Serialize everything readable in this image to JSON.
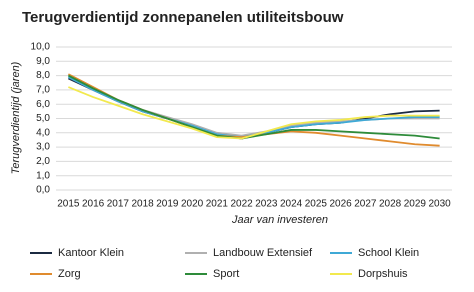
{
  "chart_data": {
    "type": "line",
    "title": "Terugverdientijd zonnepanelen utiliteitsbouw",
    "x_label": "Jaar van investeren",
    "y_label": "Terugverdientijd (jaren)",
    "categories": [
      "2015",
      "2016",
      "2017",
      "2018",
      "2019",
      "2020",
      "2021",
      "2022",
      "2023",
      "2024",
      "2025",
      "2026",
      "2027",
      "2028",
      "2029",
      "2030"
    ],
    "ylim": [
      0,
      10
    ],
    "yticks": [
      {
        "value": 0,
        "label": "0,0"
      },
      {
        "value": 1,
        "label": "1,0"
      },
      {
        "value": 2,
        "label": "2,0"
      },
      {
        "value": 3,
        "label": "3,0"
      },
      {
        "value": 4,
        "label": "4,0"
      },
      {
        "value": 5,
        "label": "5,0"
      },
      {
        "value": 6,
        "label": "6,0"
      },
      {
        "value": 7,
        "label": "7,0"
      },
      {
        "value": 8,
        "label": "8,0"
      },
      {
        "value": 9,
        "label": "9,0"
      },
      {
        "value": 10,
        "label": "10,0"
      }
    ],
    "grid": true,
    "series": [
      {
        "name": "Kantoor Klein",
        "color": "#1b2a41",
        "values": [
          7.8,
          7.0,
          6.2,
          5.5,
          5.0,
          4.5,
          3.9,
          3.6,
          4.0,
          4.4,
          4.6,
          4.7,
          5.0,
          5.3,
          5.5,
          5.55
        ]
      },
      {
        "name": "Landbouw Extensief",
        "color": "#b0b0b0",
        "values": [
          8.0,
          7.1,
          6.3,
          5.6,
          5.1,
          4.6,
          4.0,
          3.8,
          4.1,
          4.5,
          4.7,
          4.8,
          4.9,
          5.0,
          5.0,
          5.0
        ]
      },
      {
        "name": "School Klein",
        "color": "#3fa9d6",
        "values": [
          7.9,
          7.0,
          6.2,
          5.5,
          5.0,
          4.5,
          3.9,
          3.7,
          4.0,
          4.4,
          4.6,
          4.7,
          4.9,
          5.0,
          5.1,
          5.1
        ]
      },
      {
        "name": "Zorg",
        "color": "#e08b2e",
        "values": [
          8.1,
          7.2,
          6.3,
          5.6,
          5.0,
          4.4,
          3.8,
          3.7,
          3.9,
          4.1,
          4.0,
          3.8,
          3.6,
          3.4,
          3.2,
          3.1
        ]
      },
      {
        "name": "Sport",
        "color": "#2e8b3a",
        "values": [
          8.0,
          7.1,
          6.3,
          5.6,
          5.0,
          4.4,
          3.8,
          3.6,
          3.9,
          4.2,
          4.2,
          4.1,
          4.0,
          3.9,
          3.8,
          3.6
        ]
      },
      {
        "name": "Dorpshuis",
        "color": "#f2e94e",
        "values": [
          7.2,
          6.5,
          5.9,
          5.3,
          4.8,
          4.3,
          3.7,
          3.6,
          4.1,
          4.6,
          4.8,
          4.9,
          5.1,
          5.2,
          5.2,
          5.2
        ]
      }
    ]
  }
}
